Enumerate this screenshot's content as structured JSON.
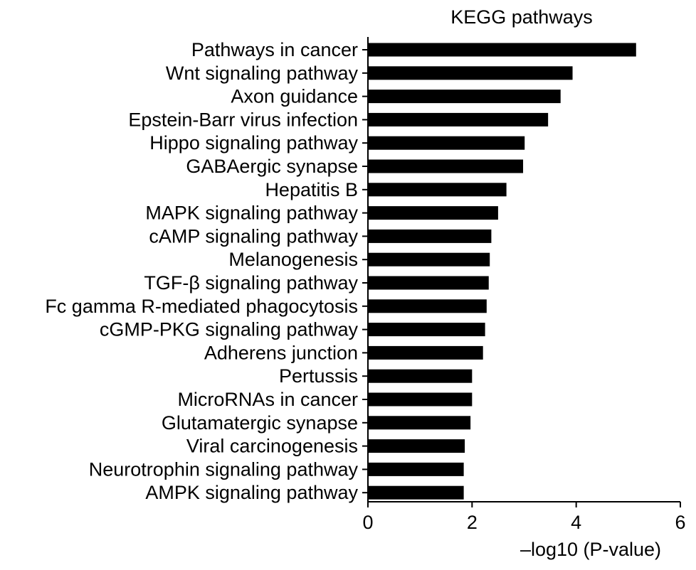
{
  "chart_data": {
    "type": "bar",
    "orientation": "horizontal",
    "title": "KEGG pathways",
    "xlabel": "–log10 (P-value)",
    "ylabel": "",
    "xlim": [
      0,
      6
    ],
    "xticks": [
      "0",
      "2",
      "4",
      "6"
    ],
    "grid": false,
    "legend": "none",
    "bar_color": "#000000",
    "categories": [
      "Pathways in cancer",
      "Wnt signaling pathway",
      "Axon guidance",
      "Epstein-Barr virus infection",
      "Hippo signaling pathway",
      "GABAergic synapse",
      "Hepatitis B",
      "MAPK signaling pathway",
      "cAMP signaling pathway",
      "Melanogenesis",
      "TGF-β signaling pathway",
      "Fc gamma R-mediated phagocytosis",
      "cGMP-PKG signaling pathway",
      "Adherens junction",
      "Pertussis",
      "MicroRNAs in cancer",
      "Glutamatergic synapse",
      "Viral carcinogenesis",
      "Neurotrophin signaling pathway",
      "AMPK signaling pathway"
    ],
    "values": [
      5.15,
      3.93,
      3.7,
      3.46,
      3.01,
      2.98,
      2.66,
      2.5,
      2.37,
      2.34,
      2.32,
      2.28,
      2.25,
      2.21,
      2.0,
      2.0,
      1.97,
      1.86,
      1.84,
      1.84
    ]
  }
}
